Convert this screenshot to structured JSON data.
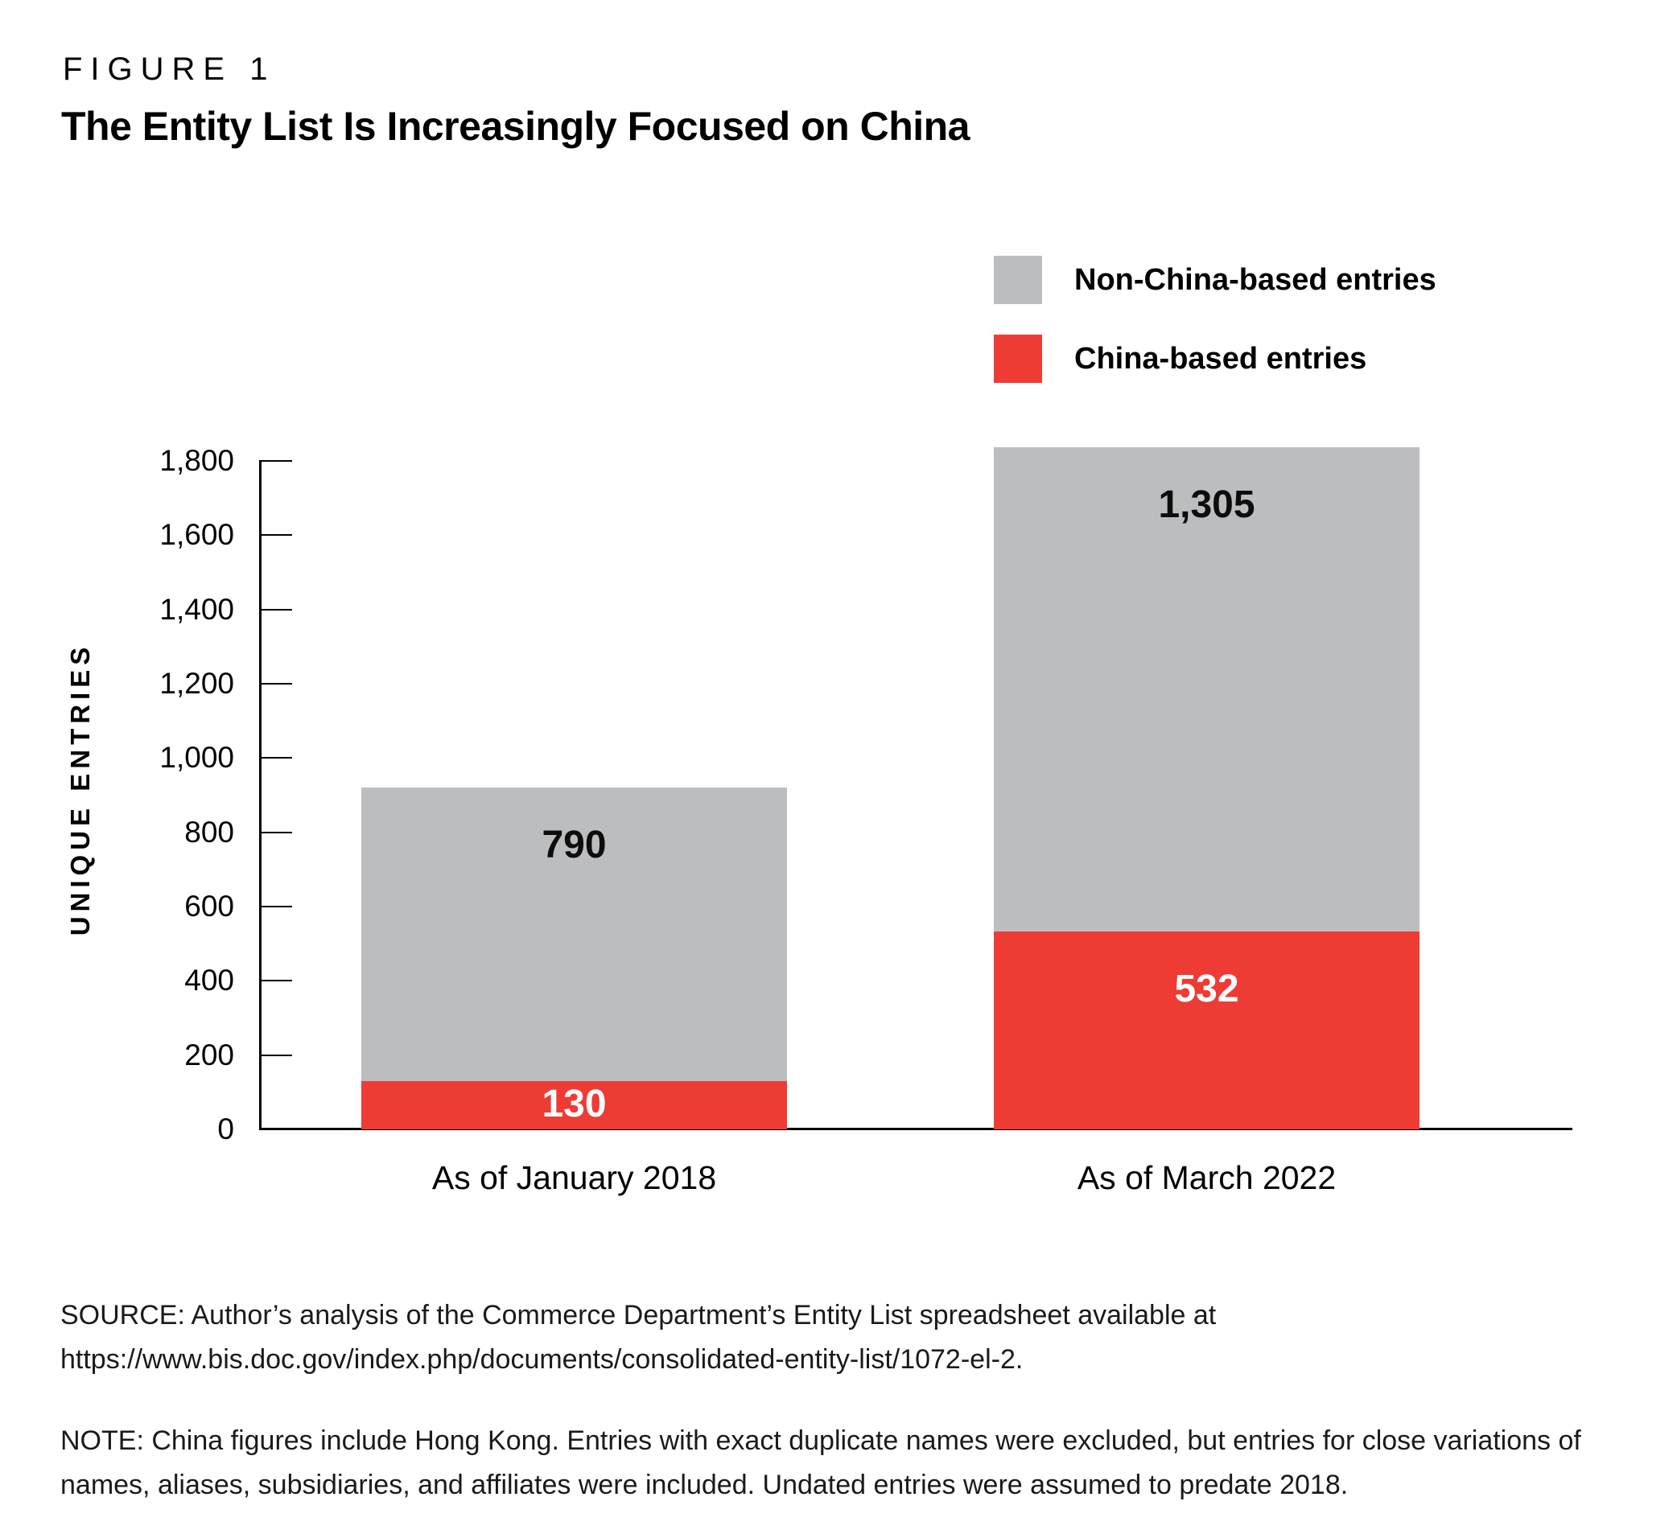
{
  "figure": {
    "kicker": "FIGURE 1",
    "title": "The Entity List Is Increasingly Focused on China"
  },
  "chart_data": {
    "type": "bar",
    "stacked": true,
    "title": "The Entity List Is Increasingly Focused on China",
    "categories": [
      "As of January 2018",
      "As of March 2022"
    ],
    "series": [
      {
        "name": "China-based entries",
        "color": "#ee3b34",
        "values": [
          130,
          532
        ],
        "labels": [
          "130",
          "532"
        ],
        "label_color": "#ffffff"
      },
      {
        "name": "Non-China-based entries",
        "color": "#bcbdbf",
        "values": [
          790,
          1305
        ],
        "labels": [
          "790",
          "1,305"
        ],
        "label_color": "#0d0d0d"
      }
    ],
    "totals": [
      920,
      1837
    ],
    "ylabel": "UNIQUE ENTRIES",
    "xlabel": "",
    "ylim": [
      0,
      1800
    ],
    "yticks": [
      0,
      200,
      400,
      600,
      800,
      1000,
      1200,
      1400,
      1600,
      1800
    ],
    "ytick_labels": [
      "0",
      "200",
      "400",
      "600",
      "800",
      "1,000",
      "1,200",
      "1,400",
      "1,600",
      "1,800"
    ],
    "grid": false,
    "legend_position": "top-right",
    "legend": [
      {
        "label": "Non-China-based entries",
        "color": "#bcbdbf"
      },
      {
        "label": "China-based entries",
        "color": "#ee3b34"
      }
    ]
  },
  "footer": {
    "source": "SOURCE: Author’s analysis of the Commerce Department’s Entity List spreadsheet available at https://www.bis.doc.gov/index.php/documents/consolidated-entity-list/1072-el-2.",
    "note": "NOTE: China figures include Hong Kong. Entries with exact duplicate names were excluded, but entries for close variations of names, aliases, subsidiaries, and affiliates were included. Undated entries were assumed to predate 2018."
  }
}
